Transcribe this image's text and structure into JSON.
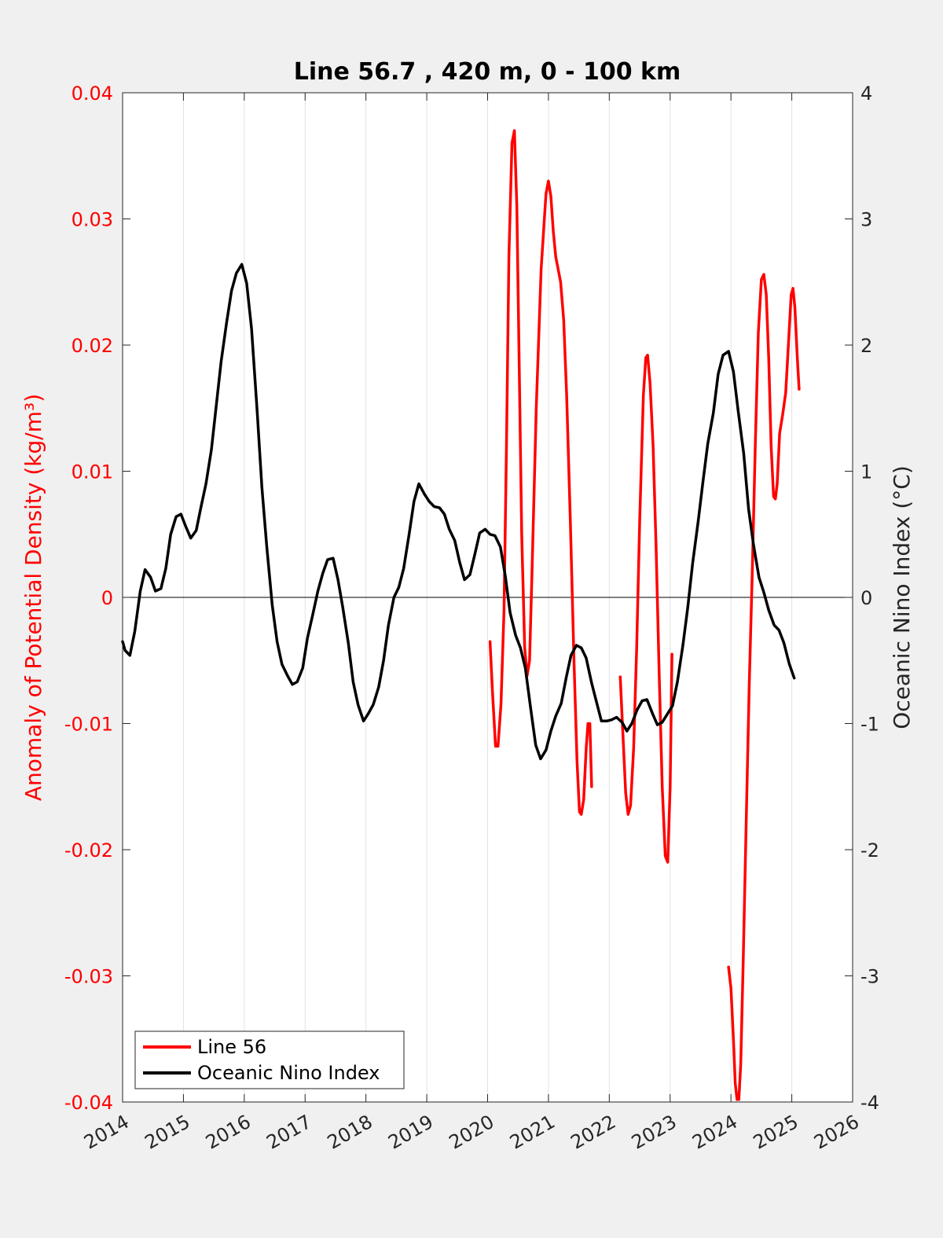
{
  "chart_data": {
    "type": "line",
    "title": "Line 56.7 , 420 m, 0 - 100 km",
    "xlabel": "",
    "ylabel_left": "Anomaly of Potential Density (kg/m³)",
    "ylabel_right": "Oceanic Nino Index (°C)",
    "xlim": [
      2014,
      2026
    ],
    "ylim_left": [
      -0.04,
      0.04
    ],
    "ylim_right": [
      -4,
      4
    ],
    "x_ticks": [
      "2014",
      "2015",
      "2016",
      "2017",
      "2018",
      "2019",
      "2020",
      "2021",
      "2022",
      "2023",
      "2024",
      "2025",
      "2026"
    ],
    "y_left_ticks": [
      "-0.04",
      "-0.03",
      "-0.02",
      "-0.01",
      "0",
      "0.01",
      "0.02",
      "0.03",
      "0.04"
    ],
    "y_right_ticks": [
      "-4",
      "-3",
      "-2",
      "-1",
      "0",
      "1",
      "2",
      "3",
      "4"
    ],
    "grid": "vertical",
    "zero_line": true,
    "legend_position": "bottom-left",
    "colors": {
      "line56": "#ff0000",
      "oni": "#000000",
      "left_axis": "#ff0000",
      "right_axis": "#262626"
    },
    "series": [
      {
        "name": "Line 56",
        "axis": "left",
        "color": "#ff0000",
        "segments": [
          [
            [
              2020.04,
              -0.0035
            ],
            [
              2020.08,
              -0.0075
            ],
            [
              2020.13,
              -0.0118
            ],
            [
              2020.17,
              -0.0118
            ],
            [
              2020.22,
              -0.0085
            ],
            [
              2020.27,
              -0.001
            ],
            [
              2020.31,
              0.012
            ],
            [
              2020.35,
              0.027
            ],
            [
              2020.4,
              0.036
            ],
            [
              2020.44,
              0.037
            ],
            [
              2020.48,
              0.031
            ],
            [
              2020.52,
              0.018
            ],
            [
              2020.56,
              0.005
            ],
            [
              2020.61,
              -0.004
            ],
            [
              2020.65,
              -0.0062
            ],
            [
              2020.69,
              -0.005
            ],
            [
              2020.73,
              0.002
            ],
            [
              2020.8,
              0.015
            ],
            [
              2020.88,
              0.026
            ],
            [
              2020.96,
              0.032
            ],
            [
              2021.0,
              0.033
            ],
            [
              2021.04,
              0.0318
            ],
            [
              2021.08,
              0.029
            ],
            [
              2021.12,
              0.027
            ],
            [
              2021.2,
              0.025
            ],
            [
              2021.25,
              0.022
            ],
            [
              2021.3,
              0.016
            ],
            [
              2021.36,
              0.006
            ],
            [
              2021.42,
              -0.005
            ],
            [
              2021.47,
              -0.013
            ],
            [
              2021.51,
              -0.017
            ],
            [
              2021.54,
              -0.0172
            ],
            [
              2021.58,
              -0.016
            ],
            [
              2021.62,
              -0.012
            ],
            [
              2021.65,
              -0.01
            ],
            [
              2021.68,
              -0.01
            ],
            [
              2021.71,
              -0.015
            ]
          ],
          [
            [
              2022.18,
              -0.0063
            ],
            [
              2022.22,
              -0.0105
            ],
            [
              2022.27,
              -0.0155
            ],
            [
              2022.31,
              -0.0172
            ],
            [
              2022.35,
              -0.0165
            ],
            [
              2022.4,
              -0.012
            ],
            [
              2022.45,
              -0.004
            ],
            [
              2022.5,
              0.006
            ],
            [
              2022.56,
              0.016
            ],
            [
              2022.6,
              0.019
            ],
            [
              2022.63,
              0.0192
            ],
            [
              2022.67,
              0.017
            ],
            [
              2022.72,
              0.012
            ],
            [
              2022.77,
              0.004
            ],
            [
              2022.82,
              -0.006
            ],
            [
              2022.87,
              -0.015
            ],
            [
              2022.92,
              -0.0205
            ],
            [
              2022.96,
              -0.021
            ],
            [
              2023.0,
              -0.015
            ],
            [
              2023.03,
              -0.0045
            ]
          ],
          [
            [
              2023.96,
              -0.0293
            ],
            [
              2024.0,
              -0.031
            ],
            [
              2024.04,
              -0.035
            ],
            [
              2024.07,
              -0.0385
            ],
            [
              2024.1,
              -0.0398
            ],
            [
              2024.13,
              -0.0398
            ],
            [
              2024.16,
              -0.037
            ],
            [
              2024.2,
              -0.029
            ],
            [
              2024.25,
              -0.018
            ],
            [
              2024.3,
              -0.007
            ],
            [
              2024.35,
              0.002
            ],
            [
              2024.4,
              0.012
            ],
            [
              2024.45,
              0.021
            ],
            [
              2024.5,
              0.0252
            ],
            [
              2024.54,
              0.0256
            ],
            [
              2024.58,
              0.024
            ],
            [
              2024.62,
              0.019
            ],
            [
              2024.66,
              0.012
            ],
            [
              2024.7,
              0.008
            ],
            [
              2024.73,
              0.0078
            ],
            [
              2024.76,
              0.009
            ],
            [
              2024.8,
              0.013
            ],
            [
              2024.85,
              0.0145
            ],
            [
              2024.9,
              0.0162
            ],
            [
              2024.95,
              0.0205
            ],
            [
              2024.99,
              0.024
            ],
            [
              2025.02,
              0.0245
            ],
            [
              2025.05,
              0.023
            ],
            [
              2025.09,
              0.019
            ],
            [
              2025.12,
              0.0165
            ]
          ]
        ]
      },
      {
        "name": "Oceanic Nino Index",
        "axis": "right",
        "color": "#000000",
        "segments": [
          [
            [
              2014.0,
              -0.35
            ],
            [
              2014.04,
              -0.42
            ],
            [
              2014.12,
              -0.46
            ],
            [
              2014.2,
              -0.27
            ],
            [
              2014.29,
              0.05
            ],
            [
              2014.37,
              0.22
            ],
            [
              2014.46,
              0.16
            ],
            [
              2014.54,
              0.05
            ],
            [
              2014.63,
              0.07
            ],
            [
              2014.71,
              0.23
            ],
            [
              2014.79,
              0.5
            ],
            [
              2014.88,
              0.64
            ],
            [
              2014.96,
              0.66
            ],
            [
              2015.04,
              0.56
            ],
            [
              2015.12,
              0.47
            ],
            [
              2015.21,
              0.53
            ],
            [
              2015.29,
              0.72
            ],
            [
              2015.37,
              0.9
            ],
            [
              2015.46,
              1.17
            ],
            [
              2015.54,
              1.52
            ],
            [
              2015.62,
              1.87
            ],
            [
              2015.71,
              2.18
            ],
            [
              2015.79,
              2.43
            ],
            [
              2015.87,
              2.57
            ],
            [
              2015.96,
              2.64
            ],
            [
              2016.04,
              2.49
            ],
            [
              2016.12,
              2.13
            ],
            [
              2016.21,
              1.49
            ],
            [
              2016.29,
              0.87
            ],
            [
              2016.37,
              0.4
            ],
            [
              2016.46,
              -0.06
            ],
            [
              2016.54,
              -0.35
            ],
            [
              2016.62,
              -0.53
            ],
            [
              2016.71,
              -0.62
            ],
            [
              2016.79,
              -0.69
            ],
            [
              2016.87,
              -0.67
            ],
            [
              2016.96,
              -0.56
            ],
            [
              2017.04,
              -0.32
            ],
            [
              2017.12,
              -0.15
            ],
            [
              2017.21,
              0.05
            ],
            [
              2017.29,
              0.19
            ],
            [
              2017.37,
              0.3
            ],
            [
              2017.46,
              0.31
            ],
            [
              2017.54,
              0.14
            ],
            [
              2017.62,
              -0.08
            ],
            [
              2017.71,
              -0.36
            ],
            [
              2017.79,
              -0.67
            ],
            [
              2017.87,
              -0.85
            ],
            [
              2017.96,
              -0.98
            ],
            [
              2018.04,
              -0.92
            ],
            [
              2018.12,
              -0.85
            ],
            [
              2018.21,
              -0.71
            ],
            [
              2018.29,
              -0.5
            ],
            [
              2018.37,
              -0.22
            ],
            [
              2018.46,
              0.0
            ],
            [
              2018.54,
              0.08
            ],
            [
              2018.62,
              0.23
            ],
            [
              2018.71,
              0.5
            ],
            [
              2018.79,
              0.76
            ],
            [
              2018.87,
              0.9
            ],
            [
              2018.96,
              0.82
            ],
            [
              2019.04,
              0.76
            ],
            [
              2019.12,
              0.72
            ],
            [
              2019.21,
              0.71
            ],
            [
              2019.29,
              0.66
            ],
            [
              2019.37,
              0.54
            ],
            [
              2019.46,
              0.45
            ],
            [
              2019.54,
              0.28
            ],
            [
              2019.62,
              0.14
            ],
            [
              2019.71,
              0.18
            ],
            [
              2019.79,
              0.34
            ],
            [
              2019.87,
              0.51
            ],
            [
              2019.96,
              0.54
            ],
            [
              2020.04,
              0.5
            ],
            [
              2020.12,
              0.49
            ],
            [
              2020.21,
              0.4
            ],
            [
              2020.29,
              0.17
            ],
            [
              2020.37,
              -0.12
            ],
            [
              2020.46,
              -0.3
            ],
            [
              2020.54,
              -0.4
            ],
            [
              2020.62,
              -0.56
            ],
            [
              2020.71,
              -0.89
            ],
            [
              2020.79,
              -1.17
            ],
            [
              2020.87,
              -1.28
            ],
            [
              2020.96,
              -1.21
            ],
            [
              2021.04,
              -1.06
            ],
            [
              2021.12,
              -0.94
            ],
            [
              2021.21,
              -0.84
            ],
            [
              2021.29,
              -0.64
            ],
            [
              2021.37,
              -0.46
            ],
            [
              2021.46,
              -0.38
            ],
            [
              2021.54,
              -0.4
            ],
            [
              2021.62,
              -0.48
            ],
            [
              2021.71,
              -0.68
            ],
            [
              2021.79,
              -0.83
            ],
            [
              2021.87,
              -0.98
            ],
            [
              2021.96,
              -0.98
            ],
            [
              2022.04,
              -0.97
            ],
            [
              2022.12,
              -0.95
            ],
            [
              2022.21,
              -0.99
            ],
            [
              2022.29,
              -1.06
            ],
            [
              2022.37,
              -1.0
            ],
            [
              2022.46,
              -0.89
            ],
            [
              2022.54,
              -0.82
            ],
            [
              2022.62,
              -0.81
            ],
            [
              2022.71,
              -0.92
            ],
            [
              2022.79,
              -1.01
            ],
            [
              2022.87,
              -0.99
            ],
            [
              2022.96,
              -0.92
            ],
            [
              2023.04,
              -0.86
            ],
            [
              2023.12,
              -0.67
            ],
            [
              2023.21,
              -0.38
            ],
            [
              2023.29,
              -0.08
            ],
            [
              2023.37,
              0.27
            ],
            [
              2023.46,
              0.6
            ],
            [
              2023.54,
              0.92
            ],
            [
              2023.62,
              1.22
            ],
            [
              2023.71,
              1.46
            ],
            [
              2023.79,
              1.77
            ],
            [
              2023.87,
              1.92
            ],
            [
              2023.96,
              1.95
            ],
            [
              2024.04,
              1.79
            ],
            [
              2024.12,
              1.47
            ],
            [
              2024.21,
              1.14
            ],
            [
              2024.29,
              0.7
            ],
            [
              2024.37,
              0.42
            ],
            [
              2024.46,
              0.16
            ],
            [
              2024.54,
              0.04
            ],
            [
              2024.62,
              -0.1
            ],
            [
              2024.71,
              -0.22
            ],
            [
              2024.79,
              -0.26
            ],
            [
              2024.87,
              -0.36
            ],
            [
              2024.96,
              -0.53
            ],
            [
              2025.04,
              -0.64
            ]
          ]
        ]
      }
    ]
  }
}
